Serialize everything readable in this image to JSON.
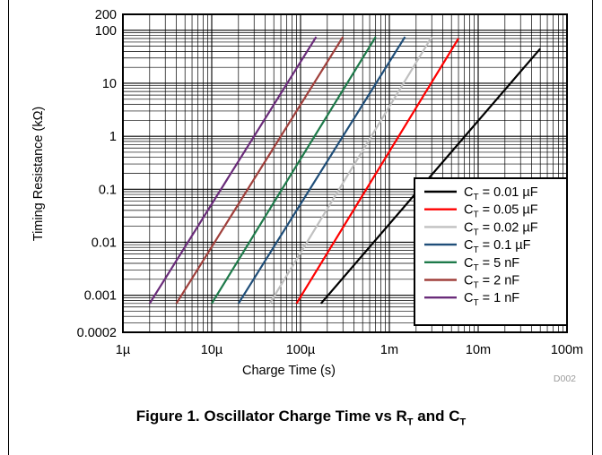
{
  "chart_data": {
    "type": "line",
    "x_scale": "log",
    "y_scale": "log",
    "xlabel": "Charge Time (s)",
    "ylabel": "Timing Resistance (kΩ)",
    "xlim": [
      1e-06,
      0.1
    ],
    "ylim": [
      0.0002,
      200
    ],
    "x_ticks": [
      {
        "value": 1e-06,
        "label": "1µ"
      },
      {
        "value": 1e-05,
        "label": "10µ"
      },
      {
        "value": 0.0001,
        "label": "100µ"
      },
      {
        "value": 0.001,
        "label": "1m"
      },
      {
        "value": 0.01,
        "label": "10m"
      },
      {
        "value": 0.1,
        "label": "100m"
      }
    ],
    "y_ticks": [
      {
        "value": 0.0002,
        "label": "0.0002"
      },
      {
        "value": 0.001,
        "label": "0.001"
      },
      {
        "value": 0.01,
        "label": "0.01"
      },
      {
        "value": 0.1,
        "label": "0.1"
      },
      {
        "value": 1,
        "label": "1"
      },
      {
        "value": 10,
        "label": "10"
      },
      {
        "value": 100,
        "label": "100"
      },
      {
        "value": 200,
        "label": "200"
      }
    ],
    "grid": true,
    "legend_position": "bottom-right",
    "series": [
      {
        "name": "C",
        "sub": "T",
        "value_label": " = 0.01 µF",
        "color": "#000000",
        "x": [
          0.00017,
          0.05
        ],
        "y": [
          0.0007,
          45
        ]
      },
      {
        "name": "C",
        "sub": "T",
        "value_label": " = 0.05 µF",
        "color": "#ff0000",
        "x": [
          9e-05,
          0.006
        ],
        "y": [
          0.0007,
          70
        ]
      },
      {
        "name": "C",
        "sub": "T",
        "value_label": " = 0.02 µF",
        "color": "#c0c0c0",
        "x": [
          4.5e-05,
          0.003
        ],
        "y": [
          0.0007,
          75
        ]
      },
      {
        "name": "C",
        "sub": "T",
        "value_label": " = 0.1 µF",
        "color": "#1f4e79",
        "x": [
          2e-05,
          0.0015
        ],
        "y": [
          0.0007,
          75
        ]
      },
      {
        "name": "C",
        "sub": "T",
        "value_label": " = 5 nF",
        "color": "#1e7a4a",
        "x": [
          1e-05,
          0.0007
        ],
        "y": [
          0.0007,
          75
        ]
      },
      {
        "name": "C",
        "sub": "T",
        "value_label": " = 2 nF",
        "color": "#a0403c",
        "x": [
          4e-06,
          0.0003
        ],
        "y": [
          0.0007,
          75
        ]
      },
      {
        "name": "C",
        "sub": "T",
        "value_label": " = 1 nF",
        "color": "#6a2c7a",
        "x": [
          2e-06,
          0.00015
        ],
        "y": [
          0.0007,
          75
        ]
      }
    ]
  },
  "code": "D002",
  "caption": {
    "text": "Figure 1. Oscillator Charge Time vs R",
    "r_sub": "T",
    "mid": " and C",
    "c_sub": "T"
  }
}
